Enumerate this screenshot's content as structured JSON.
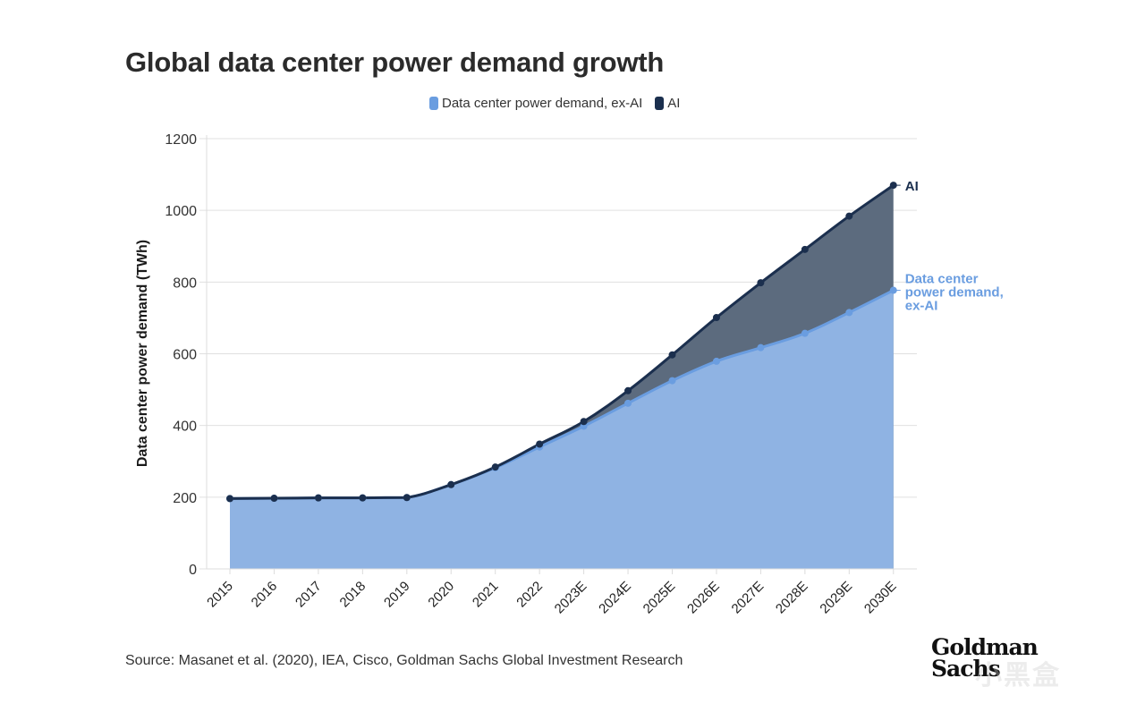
{
  "chart_data": {
    "type": "area",
    "title": "Global data center power demand growth",
    "xlabel": "",
    "ylabel": "Data center power demand (TWh)",
    "ylim": [
      0,
      1200
    ],
    "yticks": [
      0,
      200,
      400,
      600,
      800,
      1000,
      1200
    ],
    "grid": true,
    "legend_position": "top-center",
    "categories": [
      "2015",
      "2016",
      "2017",
      "2018",
      "2019",
      "2020",
      "2021",
      "2022",
      "2023E",
      "2024E",
      "2025E",
      "2026E",
      "2027E",
      "2028E",
      "2029E",
      "2030E"
    ],
    "series": [
      {
        "name": "Data center power demand, ex-AI",
        "end_label": "Data center power demand, ex-AI",
        "color": "#6a9de0",
        "fill": "#8fb3e3",
        "values": [
          196,
          197,
          198,
          198,
          199,
          235,
          282,
          340,
          398,
          462,
          525,
          579,
          617,
          657,
          715,
          777
        ]
      },
      {
        "name": "AI",
        "end_label": "AI",
        "color": "#1b2f4e",
        "fill": "#5c6b7e",
        "stacked_total": true,
        "values": [
          196,
          197,
          198,
          198,
          199,
          235,
          284,
          348,
          411,
          497,
          597,
          701,
          798,
          891,
          984,
          1070
        ]
      }
    ]
  },
  "legend": {
    "items": [
      {
        "label": "Data center power demand, ex-AI",
        "color": "#6a9de0"
      },
      {
        "label": "AI",
        "color": "#1b2f4e"
      }
    ]
  },
  "end_labels": {
    "ai": "AI",
    "exai_lines": [
      "Data center",
      "power demand,",
      "ex-AI"
    ]
  },
  "footer": {
    "source": "Source: Masanet et al. (2020), IEA, Cisco, Goldman Sachs Global Investment Research",
    "logo_line1": "Goldman",
    "logo_line2": "Sachs",
    "watermark": "小黑盒"
  }
}
